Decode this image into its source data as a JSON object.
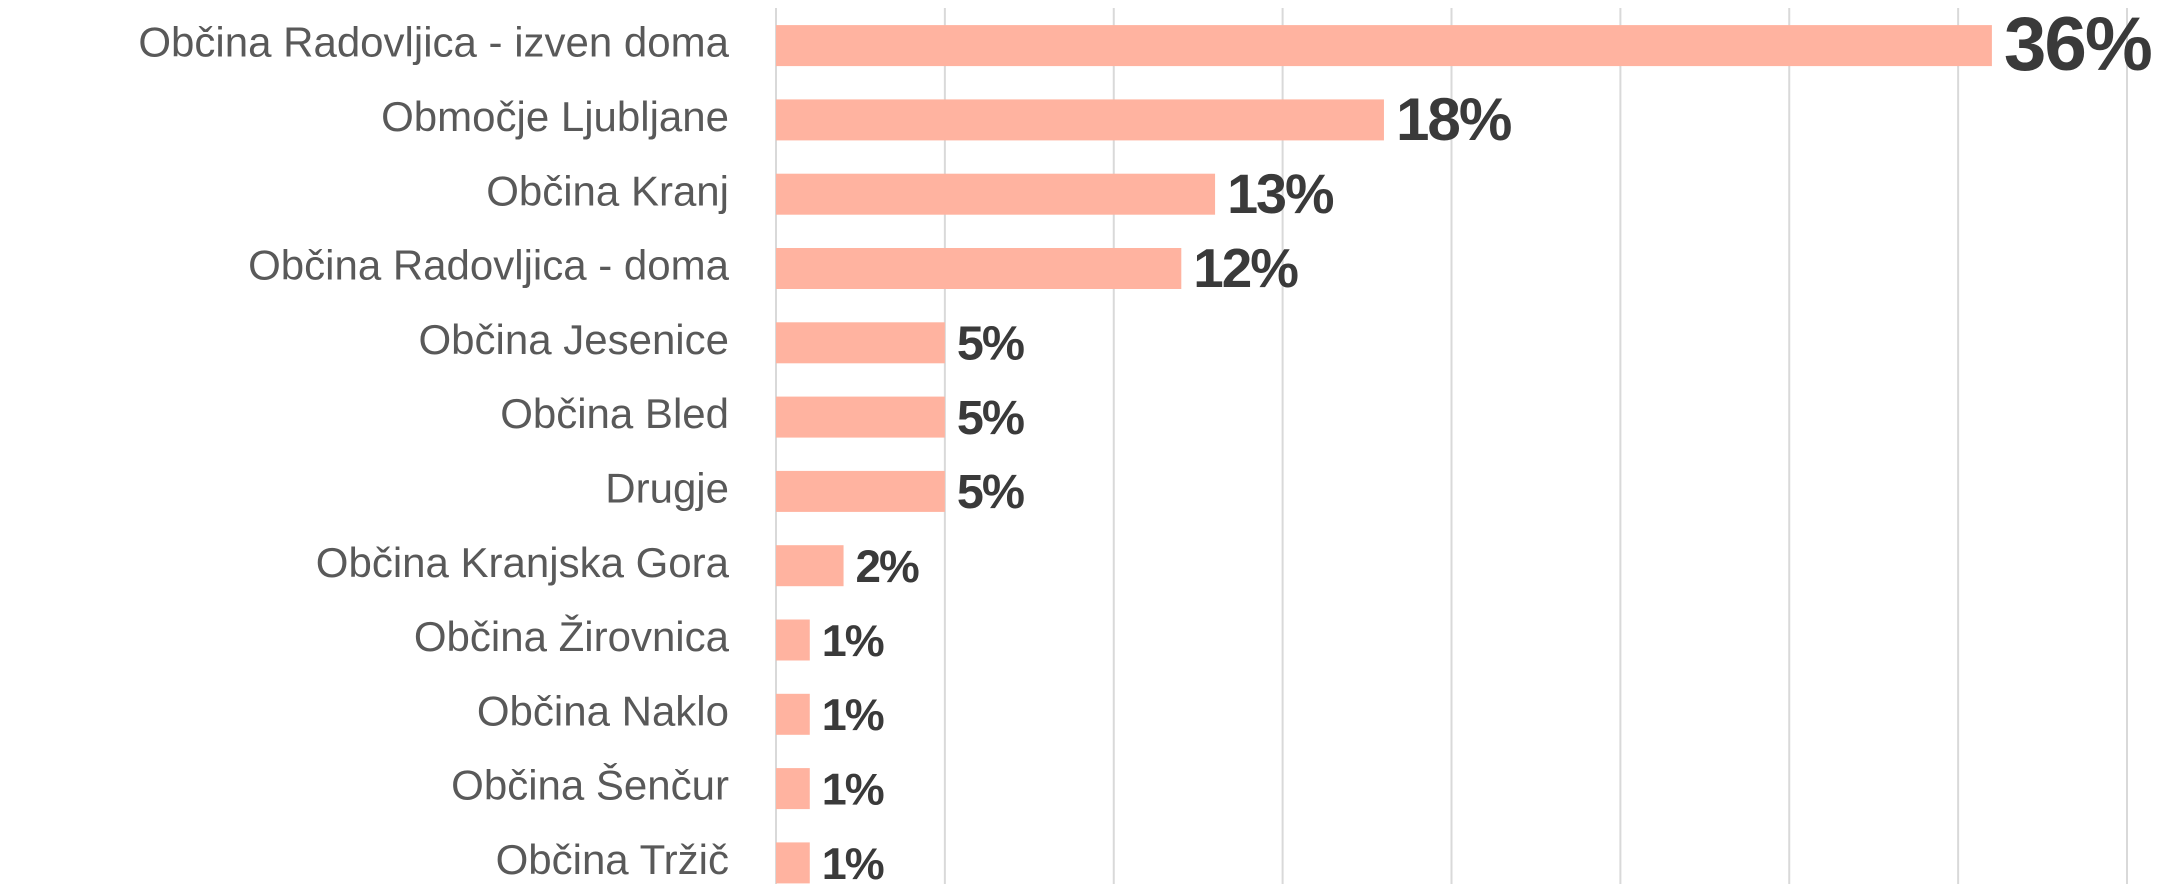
{
  "chart_data": {
    "type": "bar",
    "orientation": "horizontal",
    "categories": [
      "Občina Radovljica - izven doma",
      "Območje Ljubljane",
      "Občina Kranj",
      "Občina Radovljica - doma",
      "Občina Jesenice",
      "Občina Bled",
      "Drugje",
      "Občina Kranjska Gora",
      "Občina Žirovnica",
      "Občina Naklo",
      "Občina Šenčur",
      "Občina Tržič"
    ],
    "values": [
      36,
      18,
      13,
      12,
      5,
      5,
      5,
      2,
      1,
      1,
      1,
      1
    ],
    "value_labels": [
      "36%",
      "18%",
      "13%",
      "12%",
      "5%",
      "5%",
      "5%",
      "2%",
      "1%",
      "1%",
      "1%",
      "1%"
    ],
    "color": "#ffb3a0",
    "xlim": [
      0,
      40
    ],
    "xticks": [
      0,
      5,
      10,
      15,
      20,
      25,
      30,
      35,
      40
    ],
    "grid": true
  }
}
